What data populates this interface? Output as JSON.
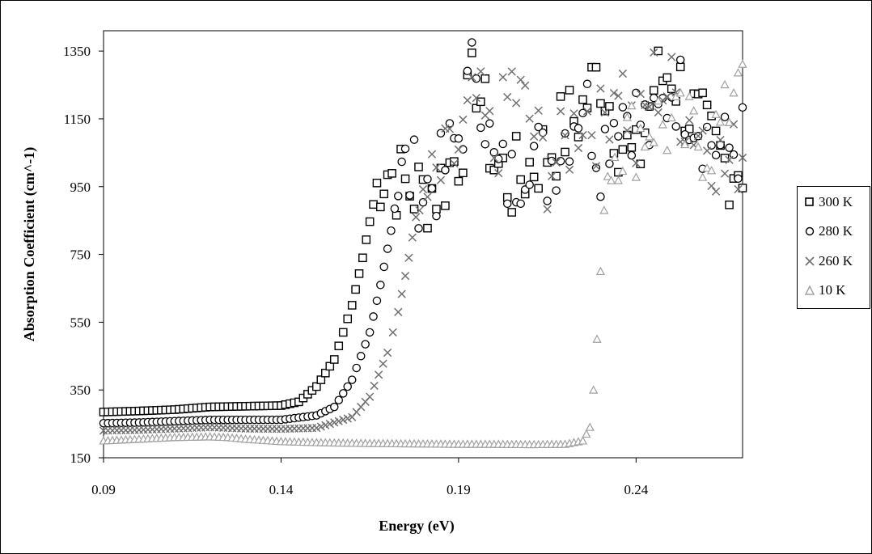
{
  "chart_data": {
    "type": "scatter",
    "title": "",
    "xlabel": "Energy (eV)",
    "ylabel": "Absorption Coefficient (cm^-1)",
    "xlim": [
      0.09,
      0.27
    ],
    "ylim": [
      150,
      1410
    ],
    "xticks": [
      "0.09",
      "0.14",
      "0.19",
      "0.24"
    ],
    "xtick_values": [
      0.09,
      0.14,
      0.19,
      0.24
    ],
    "yticks": [
      "150",
      "350",
      "550",
      "750",
      "950",
      "1150",
      "1350"
    ],
    "ytick_values": [
      150,
      350,
      550,
      750,
      950,
      1150,
      1350
    ],
    "grid": false,
    "legend_position": "right",
    "series": [
      {
        "name": "300 K",
        "marker": "square",
        "color": "#000000",
        "x": [
          0.09,
          0.1,
          0.11,
          0.12,
          0.13,
          0.14,
          0.145,
          0.15,
          0.155,
          0.16,
          0.163,
          0.166,
          0.168,
          0.17,
          0.175,
          0.18,
          0.185,
          0.19,
          0.195,
          0.2,
          0.205,
          0.21,
          0.215,
          0.22,
          0.225,
          0.23,
          0.235,
          0.24,
          0.245,
          0.25,
          0.255,
          0.26,
          0.265,
          0.27
        ],
        "y": [
          285,
          288,
          292,
          300,
          302,
          304,
          315,
          360,
          440,
          600,
          740,
          900,
          990,
          1000,
          950,
          930,
          960,
          1050,
          1280,
          1020,
          960,
          1010,
          1060,
          1120,
          1180,
          1290,
          1110,
          1000,
          1250,
          1300,
          1180,
          1080,
          1020,
          1020
        ]
      },
      {
        "name": "280 K",
        "marker": "circle",
        "color": "#000000",
        "x": [
          0.09,
          0.1,
          0.11,
          0.12,
          0.13,
          0.14,
          0.15,
          0.155,
          0.16,
          0.165,
          0.168,
          0.171,
          0.173,
          0.175,
          0.18,
          0.185,
          0.19,
          0.195,
          0.2,
          0.205,
          0.21,
          0.215,
          0.22,
          0.225,
          0.23,
          0.235,
          0.24,
          0.245,
          0.25,
          0.255,
          0.26,
          0.265,
          0.27
        ],
        "y": [
          252,
          254,
          258,
          262,
          262,
          262,
          275,
          300,
          380,
          520,
          660,
          820,
          950,
          1000,
          940,
          980,
          1100,
          1330,
          1000,
          960,
          1080,
          1000,
          1110,
          1220,
          1050,
          1200,
          1160,
          1100,
          1250,
          1200,
          1100,
          1050,
          1080
        ]
      },
      {
        "name": "260 K",
        "marker": "x",
        "color": "#707070",
        "x": [
          0.09,
          0.1,
          0.11,
          0.12,
          0.13,
          0.14,
          0.15,
          0.16,
          0.165,
          0.17,
          0.173,
          0.176,
          0.178,
          0.18,
          0.185,
          0.19,
          0.195,
          0.2,
          0.205,
          0.21,
          0.215,
          0.22,
          0.225,
          0.23,
          0.235,
          0.24,
          0.245,
          0.25,
          0.255,
          0.26,
          0.265,
          0.27
        ],
        "y": [
          230,
          232,
          236,
          240,
          236,
          235,
          238,
          270,
          330,
          460,
          580,
          740,
          860,
          900,
          980,
          1060,
          1200,
          1050,
          1250,
          1150,
          1000,
          1060,
          1180,
          1120,
          1300,
          1070,
          1260,
          1230,
          1150,
          1100,
          1000,
          1060
        ]
      },
      {
        "name": "10 K",
        "marker": "triangle",
        "color": "#a0a0a0",
        "x": [
          0.09,
          0.1,
          0.11,
          0.12,
          0.125,
          0.13,
          0.14,
          0.15,
          0.16,
          0.17,
          0.18,
          0.19,
          0.2,
          0.21,
          0.22,
          0.225,
          0.227,
          0.228,
          0.229,
          0.23,
          0.231,
          0.232,
          0.233,
          0.235,
          0.24,
          0.245,
          0.25,
          0.255,
          0.26,
          0.265,
          0.27
        ],
        "y": [
          200,
          205,
          210,
          212,
          210,
          205,
          198,
          195,
          193,
          192,
          191,
          190,
          190,
          189,
          190,
          200,
          240,
          350,
          500,
          700,
          880,
          980,
          1040,
          1090,
          1100,
          1150,
          1120,
          1100,
          1080,
          1130,
          1400
        ]
      }
    ]
  },
  "legend": {
    "items": [
      "300 K",
      "280 K",
      "260 K",
      "10 K"
    ]
  }
}
